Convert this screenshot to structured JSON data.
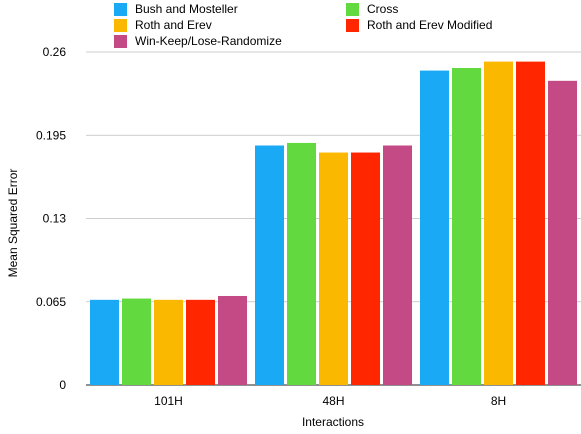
{
  "chart_data": {
    "type": "bar",
    "categories": [
      "101H",
      "48H",
      "8H"
    ],
    "series": [
      {
        "name": "Bush and Mosteller",
        "color": "#1AAAF5",
        "values": [
          0.0665,
          0.187,
          0.2455
        ]
      },
      {
        "name": "Cross",
        "color": "#62D93E",
        "values": [
          0.0675,
          0.189,
          0.2475
        ]
      },
      {
        "name": "Roth and Erev",
        "color": "#FBB800",
        "values": [
          0.0665,
          0.1815,
          0.2525
        ]
      },
      {
        "name": "Roth and Erev Modified",
        "color": "#FF2600",
        "values": [
          0.0665,
          0.1815,
          0.2525
        ]
      },
      {
        "name": "Win-Keep/Lose-Randomize",
        "color": "#C44A86",
        "values": [
          0.0695,
          0.187,
          0.2375
        ]
      }
    ],
    "xlabel": "Interactions",
    "ylabel": "Mean Squared Error",
    "ylim": [
      0,
      0.26
    ],
    "yticks": [
      "0",
      "0.065",
      "0.13",
      "0.195",
      "0.26"
    ],
    "grid": true,
    "legend_position": "top"
  }
}
